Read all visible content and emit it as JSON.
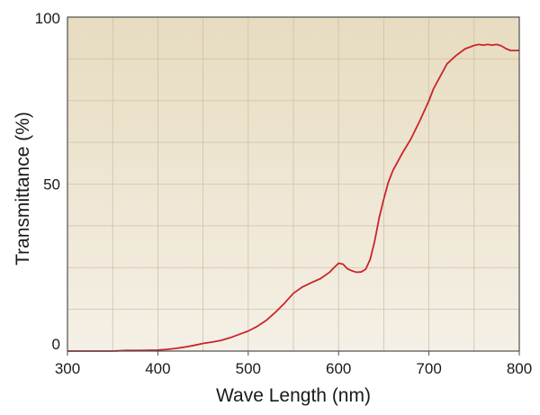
{
  "chart_data": {
    "type": "line",
    "title": "",
    "xlabel": "Wave Length (nm)",
    "ylabel": "Transmittance (%)",
    "xlim": [
      300,
      800
    ],
    "ylim": [
      0,
      100
    ],
    "x_ticks": [
      300,
      400,
      500,
      600,
      700,
      800
    ],
    "x_tick_labels": [
      "300",
      "400",
      "500",
      "600",
      "700",
      "800"
    ],
    "y_ticks": [
      0,
      50,
      100
    ],
    "y_tick_labels": [
      "0",
      "50",
      "100"
    ],
    "x_minor_step": 50,
    "y_minor_step": 12.5,
    "grid": true,
    "background_gradient": [
      "#e7dcc0",
      "#f5f0e6"
    ],
    "grid_color": "#cdc2a8",
    "axis_color": "#4d4d4d",
    "series": [
      {
        "color": "#c9252c",
        "x": [
          300,
          350,
          365,
          380,
          400,
          410,
          420,
          430,
          440,
          450,
          460,
          470,
          480,
          490,
          500,
          510,
          520,
          530,
          540,
          550,
          560,
          570,
          580,
          590,
          595,
          600,
          605,
          610,
          615,
          620,
          625,
          630,
          635,
          640,
          645,
          650,
          655,
          660,
          665,
          670,
          680,
          690,
          700,
          705,
          710,
          715,
          720,
          730,
          740,
          750,
          755,
          760,
          765,
          770,
          775,
          780,
          785,
          790,
          800
        ],
        "y": [
          0,
          0,
          0.2,
          0.2,
          0.3,
          0.5,
          0.8,
          1.2,
          1.7,
          2.3,
          2.7,
          3.2,
          4,
          5,
          6,
          7.4,
          9.2,
          11.6,
          14.3,
          17.3,
          19.2,
          20.5,
          21.7,
          23.6,
          25,
          26.3,
          26,
          24.6,
          24,
          23.6,
          23.7,
          24.5,
          27.5,
          33,
          40,
          45.5,
          50.5,
          54,
          56.5,
          59,
          63.5,
          69,
          75,
          78.5,
          81,
          83.5,
          86,
          88.5,
          90.5,
          91.5,
          91.8,
          91.6,
          91.8,
          91.6,
          91.8,
          91.4,
          90.6,
          90,
          90
        ]
      }
    ]
  }
}
